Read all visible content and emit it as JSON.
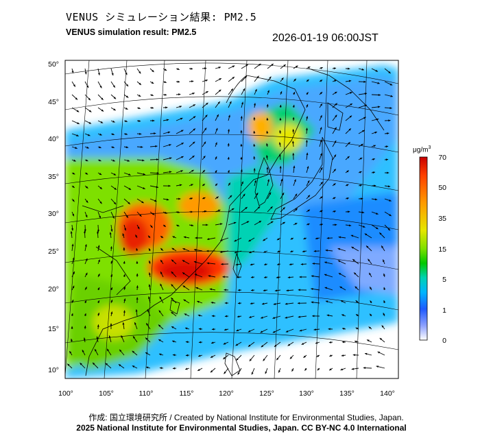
{
  "title_jp": "VENUS シミュレーション結果: PM2.5",
  "title_en": "VENUS simulation result: PM2.5",
  "timestamp": "2026-01-19 06:00JST",
  "lat_labels": [
    "50°",
    "45°",
    "40°",
    "35°",
    "30°",
    "25°",
    "20°",
    "15°",
    "10°"
  ],
  "lon_labels": [
    "100°",
    "105°",
    "110°",
    "115°",
    "120°",
    "125°",
    "130°",
    "135°",
    "140°"
  ],
  "colorbar": {
    "unit": "μg/m",
    "unit_sup": "3",
    "ticks": [
      "70",
      "50",
      "35",
      "15",
      "5",
      "1",
      "0"
    ],
    "colors": [
      "#c80000",
      "#ff4000",
      "#ff9a00",
      "#e6e600",
      "#7ee000",
      "#00c800",
      "#00d2b4",
      "#00b4ff",
      "#1e5aff",
      "#8ca0ff",
      "#ffffff"
    ]
  },
  "credit_line1": "作成: 国立環境研究所 / Created by National Institute for Environmental Studies, Japan.",
  "credit_line2": "2025 National Institute for Environmental Studies, Japan. CC BY-NC 4.0 International"
}
